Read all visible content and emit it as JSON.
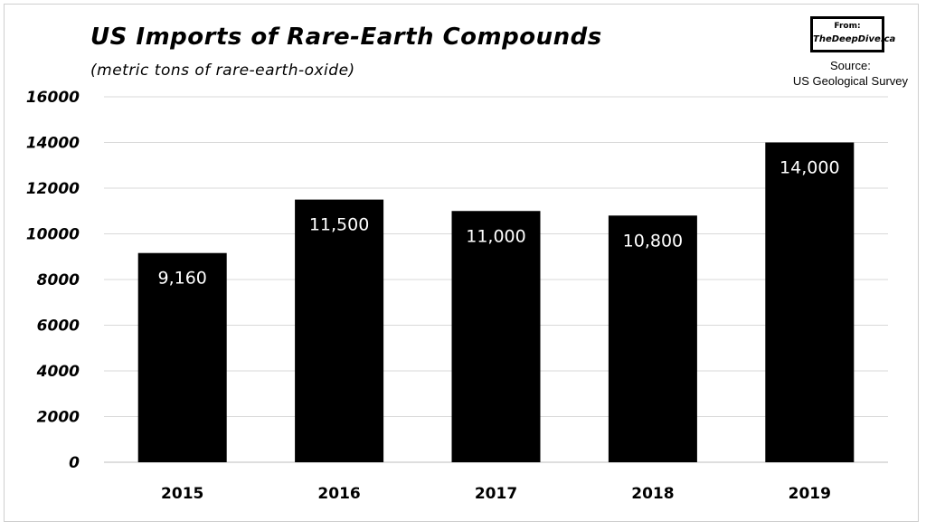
{
  "header": {
    "title": "US Imports of Rare-Earth Compounds",
    "subtitle": "(metric tons of rare-earth-oxide)"
  },
  "badge": {
    "from": "From:",
    "site": "TheDeepDive.ca"
  },
  "source": {
    "line1": "Source:",
    "line2": "US Geological Survey"
  },
  "chart_data": {
    "type": "bar",
    "title": "US Imports of Rare-Earth Compounds",
    "subtitle": "(metric tons of rare-earth-oxide)",
    "categories": [
      "2015",
      "2016",
      "2017",
      "2018",
      "2019"
    ],
    "values": [
      9160,
      11500,
      11000,
      10800,
      14000
    ],
    "data_labels": [
      "9,160",
      "11,500",
      "11,000",
      "10,800",
      "14,000"
    ],
    "yticks": [
      0,
      2000,
      4000,
      6000,
      8000,
      10000,
      12000,
      14000,
      16000
    ],
    "ylim": [
      0,
      16000
    ],
    "grid": true,
    "legend": "none",
    "bar_color": "#000000",
    "label_color": "#ffffff"
  }
}
